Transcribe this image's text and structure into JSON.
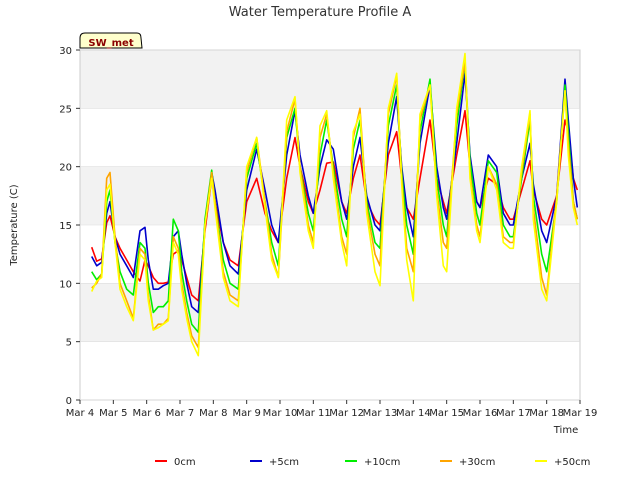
{
  "chart_data": {
    "type": "line",
    "title": "Water Temperature Profile A",
    "xlabel": "Time",
    "ylabel": "Temperature (C)",
    "station_badge": "SW_met",
    "ylim": [
      0,
      30
    ],
    "yticks": [
      0,
      5,
      10,
      15,
      20,
      25,
      30
    ],
    "xticks": [
      "Mar 4",
      "Mar 5",
      "Mar 6",
      "Mar 7",
      "Mar 8",
      "Mar 9",
      "Mar 10",
      "Mar 11",
      "Mar 12",
      "Mar 13",
      "Mar 14",
      "Mar 15",
      "Mar 16",
      "Mar 17",
      "Mar 18",
      "Mar 19"
    ],
    "xlim_days": [
      0,
      15
    ],
    "grid": "horizontal bands",
    "legend_position": "bottom",
    "series": [
      {
        "name": "0cm",
        "color": "#ff0000",
        "x": [
          0.35,
          0.5,
          0.65,
          0.8,
          0.9,
          1.05,
          1.2,
          1.4,
          1.6,
          1.8,
          1.95,
          2.05,
          2.2,
          2.35,
          2.5,
          2.65,
          2.8,
          2.95,
          3.05,
          3.2,
          3.35,
          3.55,
          3.75,
          3.95,
          4.05,
          4.3,
          4.5,
          4.75,
          5.0,
          5.3,
          5.55,
          5.75,
          5.95,
          6.2,
          6.45,
          6.6,
          6.85,
          7.0,
          7.2,
          7.4,
          7.6,
          7.85,
          8.0,
          8.2,
          8.4,
          8.6,
          8.85,
          9.0,
          9.25,
          9.5,
          9.65,
          9.8,
          10.0,
          10.2,
          10.5,
          10.7,
          10.9,
          11.0,
          11.3,
          11.55,
          11.7,
          11.9,
          12.0,
          12.25,
          12.5,
          12.7,
          12.9,
          13.0,
          13.25,
          13.5,
          13.6,
          13.85,
          14.0,
          14.3,
          14.55,
          14.65,
          14.8,
          14.92
        ],
        "y": [
          13.1,
          11.9,
          12.1,
          15.2,
          15.8,
          14.0,
          13.0,
          12.0,
          11.0,
          10.2,
          12.0,
          11.5,
          10.5,
          10.0,
          10.0,
          10.1,
          12.5,
          12.8,
          12.0,
          10.5,
          9.0,
          8.5,
          14.5,
          19.0,
          17.0,
          13.5,
          12.0,
          11.5,
          17.0,
          19.0,
          16.0,
          14.5,
          13.5,
          19.0,
          22.5,
          20.0,
          17.0,
          16.0,
          18.0,
          20.3,
          20.4,
          17.0,
          16.0,
          19.0,
          21.0,
          17.0,
          15.5,
          15.0,
          21.0,
          23.0,
          19.0,
          16.5,
          15.5,
          19.0,
          24.0,
          19.0,
          17.0,
          16.0,
          21.0,
          24.8,
          20.0,
          17.0,
          16.5,
          19.0,
          18.5,
          16.5,
          15.5,
          15.5,
          18.0,
          20.5,
          18.0,
          15.5,
          15.0,
          17.5,
          24.0,
          23.0,
          19.0,
          18.0
        ]
      },
      {
        "name": "+5cm",
        "color": "#0000cc",
        "x": [
          0.35,
          0.5,
          0.65,
          0.8,
          0.9,
          1.05,
          1.2,
          1.4,
          1.6,
          1.8,
          1.95,
          2.05,
          2.2,
          2.35,
          2.5,
          2.65,
          2.8,
          2.95,
          3.05,
          3.2,
          3.35,
          3.55,
          3.75,
          3.95,
          4.05,
          4.3,
          4.5,
          4.75,
          5.0,
          5.3,
          5.55,
          5.75,
          5.95,
          6.2,
          6.45,
          6.6,
          6.85,
          7.0,
          7.2,
          7.4,
          7.6,
          7.85,
          8.0,
          8.2,
          8.4,
          8.6,
          8.85,
          9.0,
          9.25,
          9.5,
          9.65,
          9.8,
          10.0,
          10.2,
          10.5,
          10.7,
          10.9,
          11.0,
          11.3,
          11.55,
          11.7,
          11.9,
          12.0,
          12.25,
          12.5,
          12.7,
          12.9,
          13.0,
          13.25,
          13.5,
          13.6,
          13.85,
          14.0,
          14.3,
          14.55,
          14.65,
          14.8,
          14.92
        ],
        "y": [
          12.3,
          11.5,
          11.8,
          16.0,
          17.0,
          14.0,
          12.5,
          11.5,
          10.5,
          14.5,
          14.8,
          12.0,
          9.5,
          9.5,
          9.8,
          10.0,
          14.0,
          14.5,
          12.5,
          10.0,
          8.0,
          7.5,
          15.0,
          19.5,
          18.0,
          13.5,
          11.5,
          10.8,
          18.0,
          21.5,
          18.0,
          15.0,
          13.5,
          21.0,
          24.8,
          21.0,
          17.5,
          16.0,
          20.0,
          22.3,
          21.5,
          17.0,
          15.5,
          20.0,
          22.5,
          17.5,
          15.0,
          14.5,
          22.0,
          26.0,
          20.0,
          16.5,
          14.0,
          22.0,
          27.0,
          20.0,
          16.5,
          15.5,
          22.0,
          28.0,
          21.0,
          17.0,
          16.5,
          21.0,
          20.0,
          16.0,
          15.0,
          15.0,
          19.0,
          22.0,
          18.5,
          14.5,
          13.5,
          17.5,
          27.5,
          24.0,
          19.0,
          16.5
        ]
      },
      {
        "name": "+10cm",
        "color": "#00ee00",
        "x": [
          0.35,
          0.5,
          0.65,
          0.8,
          0.9,
          1.05,
          1.2,
          1.4,
          1.6,
          1.8,
          1.95,
          2.05,
          2.2,
          2.35,
          2.5,
          2.65,
          2.8,
          2.95,
          3.05,
          3.2,
          3.35,
          3.55,
          3.75,
          3.95,
          4.05,
          4.3,
          4.5,
          4.75,
          5.0,
          5.3,
          5.55,
          5.75,
          5.95,
          6.2,
          6.45,
          6.6,
          6.85,
          7.0,
          7.2,
          7.4,
          7.6,
          7.85,
          8.0,
          8.2,
          8.4,
          8.6,
          8.85,
          9.0,
          9.25,
          9.5,
          9.65,
          9.8,
          10.0,
          10.2,
          10.5,
          10.7,
          10.9,
          11.0,
          11.3,
          11.55,
          11.7,
          11.9,
          12.0,
          12.25,
          12.5,
          12.7,
          12.9,
          13.0,
          13.25,
          13.5,
          13.6,
          13.85,
          14.0,
          14.3,
          14.55,
          14.65,
          14.8,
          14.92
        ],
        "y": [
          11.0,
          10.3,
          10.8,
          17.0,
          18.0,
          13.5,
          11.0,
          9.5,
          9.0,
          13.5,
          13.0,
          10.0,
          7.5,
          8.0,
          8.0,
          8.5,
          15.5,
          14.5,
          11.0,
          8.5,
          6.5,
          5.8,
          15.5,
          19.7,
          17.0,
          12.0,
          10.0,
          9.5,
          19.0,
          22.0,
          17.0,
          13.5,
          11.5,
          22.5,
          25.0,
          20.0,
          16.0,
          14.5,
          21.0,
          24.0,
          20.0,
          15.5,
          14.0,
          21.5,
          24.0,
          17.0,
          13.5,
          13.0,
          23.5,
          27.0,
          19.5,
          15.0,
          12.5,
          23.0,
          27.5,
          19.0,
          15.0,
          14.0,
          23.5,
          29.0,
          20.5,
          16.0,
          15.0,
          20.5,
          19.5,
          15.0,
          14.0,
          14.0,
          19.0,
          24.0,
          17.5,
          12.5,
          11.0,
          17.0,
          27.0,
          23.0,
          17.0,
          15.5
        ]
      },
      {
        "name": "+30cm",
        "color": "#ffa500",
        "x": [
          0.35,
          0.5,
          0.65,
          0.8,
          0.9,
          1.05,
          1.2,
          1.4,
          1.6,
          1.8,
          1.95,
          2.05,
          2.2,
          2.35,
          2.5,
          2.65,
          2.8,
          2.95,
          3.05,
          3.2,
          3.35,
          3.55,
          3.75,
          3.95,
          4.05,
          4.3,
          4.5,
          4.75,
          5.0,
          5.3,
          5.55,
          5.75,
          5.95,
          6.2,
          6.45,
          6.6,
          6.85,
          7.0,
          7.2,
          7.4,
          7.6,
          7.85,
          8.0,
          8.2,
          8.4,
          8.6,
          8.85,
          9.0,
          9.25,
          9.5,
          9.65,
          9.8,
          10.0,
          10.2,
          10.5,
          10.7,
          10.9,
          11.0,
          11.3,
          11.55,
          11.7,
          11.9,
          12.0,
          12.25,
          12.5,
          12.7,
          12.9,
          13.0,
          13.25,
          13.5,
          13.6,
          13.85,
          14.0,
          14.3,
          14.55,
          14.65,
          14.8,
          14.92
        ],
        "y": [
          9.6,
          10.0,
          10.8,
          19.0,
          19.5,
          14.0,
          10.0,
          8.5,
          7.0,
          13.0,
          12.5,
          9.0,
          6.0,
          6.5,
          6.5,
          7.0,
          14.0,
          13.0,
          10.0,
          7.5,
          5.5,
          4.5,
          15.0,
          19.5,
          17.0,
          11.0,
          9.0,
          8.5,
          19.5,
          22.5,
          17.0,
          12.5,
          10.5,
          23.0,
          25.8,
          20.0,
          15.0,
          13.5,
          22.5,
          24.5,
          19.5,
          14.0,
          12.5,
          22.5,
          25.0,
          16.5,
          12.5,
          11.5,
          24.5,
          27.8,
          19.0,
          13.0,
          11.0,
          24.0,
          27.0,
          18.0,
          13.5,
          13.0,
          24.5,
          29.0,
          19.5,
          15.0,
          14.0,
          20.0,
          18.5,
          14.0,
          13.5,
          13.5,
          19.5,
          24.5,
          16.5,
          10.5,
          9.0,
          17.5,
          26.5,
          22.0,
          17.0,
          15.5
        ]
      },
      {
        "name": "+50cm",
        "color": "#ffff00",
        "x": [
          0.35,
          0.5,
          0.65,
          0.8,
          0.9,
          1.05,
          1.2,
          1.4,
          1.6,
          1.8,
          1.95,
          2.05,
          2.2,
          2.35,
          2.5,
          2.65,
          2.8,
          2.95,
          3.05,
          3.2,
          3.35,
          3.55,
          3.75,
          3.95,
          4.05,
          4.3,
          4.5,
          4.75,
          5.0,
          5.3,
          5.55,
          5.75,
          5.95,
          6.2,
          6.45,
          6.6,
          6.85,
          7.0,
          7.2,
          7.4,
          7.6,
          7.85,
          8.0,
          8.2,
          8.4,
          8.6,
          8.85,
          9.0,
          9.25,
          9.5,
          9.65,
          9.8,
          10.0,
          10.2,
          10.5,
          10.7,
          10.9,
          11.0,
          11.3,
          11.55,
          11.7,
          11.9,
          12.0,
          12.25,
          12.5,
          12.7,
          12.9,
          13.0,
          13.25,
          13.5,
          13.6,
          13.85,
          14.0,
          14.3,
          14.55,
          14.65,
          14.8,
          14.92
        ],
        "y": [
          9.3,
          10.2,
          10.5,
          18.0,
          18.5,
          13.5,
          9.5,
          8.0,
          6.8,
          12.5,
          12.0,
          8.5,
          6.0,
          6.2,
          6.5,
          6.8,
          13.5,
          12.5,
          9.5,
          7.0,
          5.0,
          3.8,
          15.0,
          19.0,
          16.5,
          10.5,
          8.5,
          8.0,
          20.0,
          22.5,
          16.5,
          12.0,
          10.5,
          24.0,
          26.0,
          19.5,
          14.5,
          13.0,
          23.5,
          24.8,
          19.0,
          13.5,
          11.5,
          23.0,
          24.5,
          16.0,
          11.0,
          9.8,
          25.0,
          28.0,
          18.5,
          12.0,
          8.5,
          24.5,
          27.0,
          17.5,
          11.5,
          11.0,
          25.0,
          29.7,
          19.0,
          14.5,
          13.5,
          20.0,
          18.0,
          13.5,
          13.0,
          13.0,
          20.0,
          24.8,
          15.5,
          9.5,
          8.5,
          17.0,
          26.5,
          21.0,
          16.5,
          15.0
        ]
      }
    ]
  }
}
